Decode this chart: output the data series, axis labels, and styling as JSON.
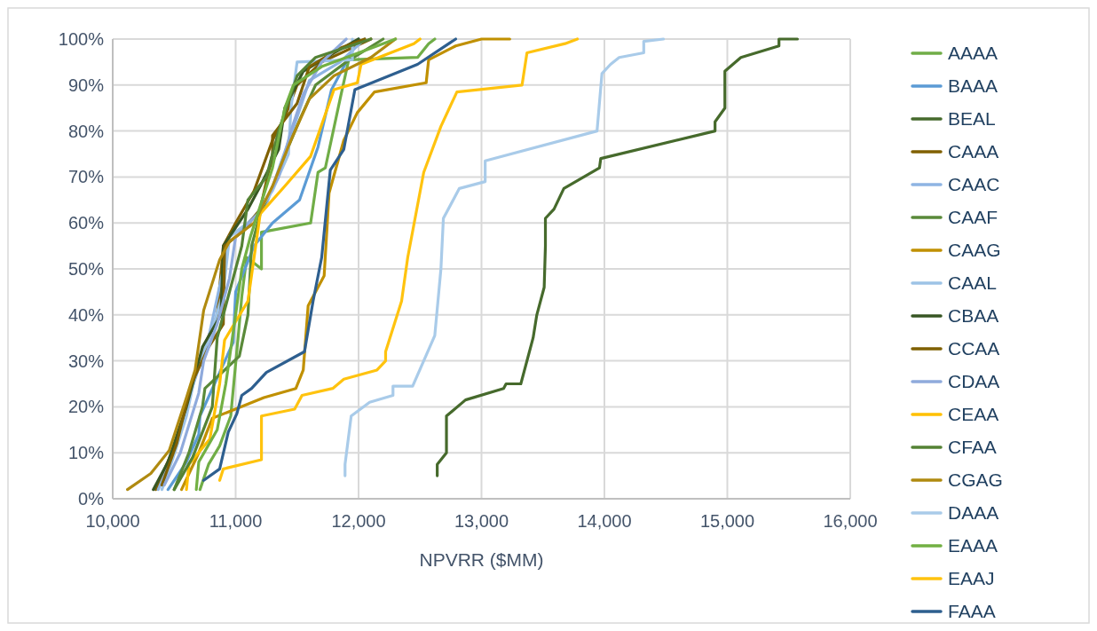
{
  "chart_data": {
    "type": "line",
    "xlabel": "NPVRR ($MM)",
    "xlim": [
      10000,
      16000
    ],
    "xticks": [
      {
        "value": 10000,
        "label": "10,000"
      },
      {
        "value": 11000,
        "label": "11,000"
      },
      {
        "value": 12000,
        "label": "12,000"
      },
      {
        "value": 13000,
        "label": "13,000"
      },
      {
        "value": 14000,
        "label": "14,000"
      },
      {
        "value": 15000,
        "label": "15,000"
      },
      {
        "value": 16000,
        "label": "16,000"
      }
    ],
    "ylim": [
      0,
      100
    ],
    "yticks": [
      {
        "value": 0,
        "label": "0%"
      },
      {
        "value": 10,
        "label": "10%"
      },
      {
        "value": 20,
        "label": "20%"
      },
      {
        "value": 30,
        "label": "30%"
      },
      {
        "value": 40,
        "label": "40%"
      },
      {
        "value": 50,
        "label": "50%"
      },
      {
        "value": 60,
        "label": "60%"
      },
      {
        "value": 70,
        "label": "70%"
      },
      {
        "value": 80,
        "label": "80%"
      },
      {
        "value": 90,
        "label": "90%"
      },
      {
        "value": 100,
        "label": "100%"
      }
    ],
    "grid": true,
    "legend": "right",
    "marker": "none",
    "line_style": "solid",
    "series": [
      {
        "name": "AAAA",
        "color": "#70ad47",
        "x": [
          10710,
          10780,
          10870,
          10960,
          11020,
          11050,
          11090,
          11210,
          11210,
          11610,
          11670,
          11730,
          11850,
          11920,
          12480,
          12570,
          12620
        ],
        "values": [
          2,
          7.5,
          11.5,
          18,
          35,
          44,
          52.5,
          50,
          58,
          60,
          71,
          72,
          87,
          95.5,
          96,
          99,
          100
        ]
      },
      {
        "name": "BAAA",
        "color": "#5b9bd5",
        "x": [
          10450,
          10600,
          10700,
          10710,
          10980,
          11000,
          11150,
          11300,
          11520,
          11670,
          11780,
          11900,
          12000
        ],
        "values": [
          2,
          8,
          14,
          18,
          34,
          45,
          55,
          60,
          65,
          76.5,
          89,
          95,
          100
        ]
      },
      {
        "name": "BEAL",
        "color": "#466a2c",
        "x": [
          12640,
          12640,
          12715,
          12715,
          12870,
          13180,
          13200,
          13320,
          13420,
          13450,
          13510,
          13520,
          13520,
          13590,
          13670,
          13960,
          13970,
          14900,
          14900,
          14980,
          14980,
          15110,
          15420,
          15420,
          15570
        ],
        "values": [
          5,
          7.5,
          10,
          18,
          21.5,
          24,
          25,
          25,
          35,
          40,
          46,
          55,
          61,
          63,
          67.5,
          72,
          74,
          80,
          82,
          85,
          93,
          96,
          98.5,
          100,
          100
        ]
      },
      {
        "name": "CAAA",
        "color": "#806000",
        "x": [
          10350,
          10480,
          10600,
          10700,
          10850,
          10900,
          11000,
          11150,
          11300,
          11400,
          11500,
          11700,
          12100
        ],
        "values": [
          2,
          10,
          20,
          30,
          40,
          55,
          60,
          67,
          78,
          83,
          90,
          95,
          100
        ]
      },
      {
        "name": "CAAC",
        "color": "#8eb4e3",
        "x": [
          10370,
          10500,
          10620,
          10780,
          10900,
          10950,
          11100,
          11250,
          11380,
          11500,
          11600,
          11850,
          12050
        ],
        "values": [
          2,
          10,
          22,
          35,
          50,
          57,
          60,
          64,
          74,
          83,
          91,
          95,
          100
        ]
      },
      {
        "name": "CAAF",
        "color": "#5a8a3a",
        "x": [
          10500,
          10620,
          10730,
          10750,
          11030,
          11100,
          11130,
          11200,
          11320,
          11420,
          11530,
          11650,
          11900,
          12200
        ],
        "values": [
          2,
          10,
          20,
          24,
          31,
          40,
          55,
          62,
          69,
          76,
          83,
          90,
          95,
          100
        ]
      },
      {
        "name": "CAAG",
        "color": "#c09000",
        "x": [
          10560,
          10700,
          10810,
          11230,
          11490,
          11550,
          11590,
          11720,
          11760,
          11880,
          11990,
          12130,
          12550,
          12570,
          12790,
          13000,
          13230
        ],
        "values": [
          2,
          10,
          17.5,
          22,
          24,
          28,
          42,
          48.5,
          66.5,
          78,
          84,
          88.5,
          90.5,
          95.5,
          98.5,
          100,
          100
        ]
      },
      {
        "name": "CAAL",
        "color": "#9dc3e6",
        "x": [
          10400,
          10480,
          10600,
          10680,
          10800,
          10900,
          10950,
          11150,
          11300,
          11430,
          11450,
          11500,
          11950,
          11950
        ],
        "values": [
          2,
          8,
          18,
          28,
          36,
          45,
          57,
          61,
          67,
          75,
          85,
          95,
          95.5,
          100
        ]
      },
      {
        "name": "CBAA",
        "color": "#375623",
        "x": [
          10330,
          10450,
          10600,
          10730,
          10880,
          10900,
          11100,
          11200,
          11350,
          11400,
          11550,
          11800,
          12000
        ],
        "values": [
          2,
          8,
          20,
          33,
          40,
          55,
          63,
          68,
          76,
          85,
          93,
          97,
          100
        ]
      },
      {
        "name": "CCAA",
        "color": "#7f6000",
        "x": [
          10400,
          10520,
          10640,
          10780,
          10900,
          10910,
          11050,
          11200,
          11300,
          11300,
          11500,
          11600,
          11850,
          12050
        ],
        "values": [
          3,
          12,
          25,
          33,
          38,
          55,
          58,
          63,
          75,
          79,
          86,
          94,
          98,
          100
        ]
      },
      {
        "name": "CDAA",
        "color": "#8faadc",
        "x": [
          10420,
          10550,
          10700,
          10740,
          10850,
          10950,
          11000,
          11180,
          11350,
          11450,
          11550,
          11700,
          11900
        ],
        "values": [
          3,
          10,
          23,
          30,
          38,
          48,
          57,
          62,
          70,
          80,
          88,
          95,
          100
        ]
      },
      {
        "name": "CEAA",
        "color": "#ffc000",
        "x": [
          10600,
          10620,
          10790,
          10870,
          10910,
          11100,
          11150,
          11200,
          11400,
          11610,
          11800,
          11990,
          12020,
          12450,
          12500
        ],
        "values": [
          2,
          7.5,
          13,
          25,
          34.5,
          43,
          52.5,
          62,
          68,
          74.5,
          89,
          90.5,
          94.5,
          99,
          100
        ]
      },
      {
        "name": "CFAA",
        "color": "#548235",
        "x": [
          10500,
          10650,
          10810,
          10850,
          10950,
          11050,
          11100,
          11250,
          11350,
          11450,
          11500,
          11650,
          12100
        ],
        "values": [
          2,
          9,
          20,
          35,
          45,
          55,
          65,
          70,
          80,
          88,
          92,
          96,
          100
        ]
      },
      {
        "name": "CGAG",
        "color": "#b08a10",
        "x": [
          10120,
          10310,
          10460,
          10600,
          10670,
          10740,
          10870,
          10950,
          11150,
          11300,
          11450,
          11600,
          11800,
          12100,
          12300
        ],
        "values": [
          2,
          5.5,
          10.5,
          22,
          28,
          41,
          52,
          56,
          60,
          68,
          78,
          87,
          92,
          96,
          100
        ]
      },
      {
        "name": "DAAA",
        "color": "#a9cbe9",
        "x": [
          11890,
          11890,
          11940,
          12090,
          12280,
          12280,
          12440,
          12620,
          12670,
          12690,
          12820,
          13030,
          13030,
          13940,
          13980,
          14050,
          14120,
          14320,
          14320,
          14480
        ],
        "values": [
          5,
          7.5,
          18,
          21,
          22.5,
          24.5,
          24.5,
          35.5,
          50,
          61,
          67.5,
          69,
          73.5,
          80,
          92.5,
          94.5,
          96,
          97,
          99.5,
          100
        ]
      },
      {
        "name": "EAAA",
        "color": "#72b043",
        "x": [
          10680,
          10700,
          10850,
          10920,
          11000,
          11050,
          11120,
          11180,
          11300,
          11400,
          11470,
          11700,
          11900,
          12300
        ],
        "values": [
          2,
          8,
          15,
          25,
          40,
          50,
          57,
          62,
          72,
          85,
          90,
          94,
          96,
          100
        ]
      },
      {
        "name": "EAAJ",
        "color": "#ffc30f",
        "x": [
          10870,
          10900,
          11210,
          11210,
          11480,
          11540,
          11790,
          11880,
          12150,
          12220,
          12220,
          12350,
          12400,
          12530,
          12670,
          12800,
          13330,
          13370,
          13680,
          13780
        ],
        "values": [
          4,
          6.5,
          8.5,
          18,
          19.5,
          22.5,
          24,
          26,
          28,
          30,
          32,
          43,
          52.5,
          71,
          81,
          88.5,
          90,
          97,
          99,
          100
        ]
      },
      {
        "name": "FAAA",
        "color": "#2e5f8f",
        "x": [
          10740,
          10870,
          10940,
          11010,
          11050,
          11130,
          11250,
          11560,
          11630,
          11700,
          11770,
          11880,
          11970,
          12480,
          12790
        ],
        "values": [
          4,
          6.5,
          14.5,
          18.5,
          22.5,
          24,
          27.5,
          32,
          43,
          52.5,
          71.5,
          76,
          89,
          94.5,
          100
        ]
      }
    ]
  }
}
